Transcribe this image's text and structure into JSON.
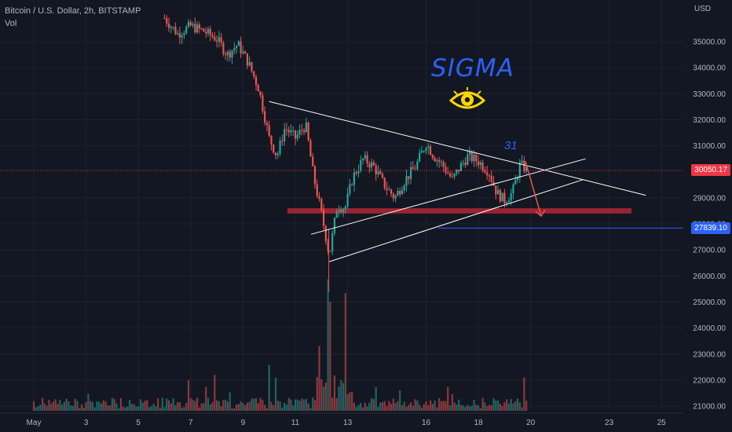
{
  "legend": {
    "symbol": "Bitcoin / U.S. Dollar, 2h, BITSTAMP",
    "volume_label": "Vol"
  },
  "price_axis": {
    "currency": "USD",
    "ticks": [
      "35000.00",
      "34000.00",
      "33000.00",
      "32000.00",
      "31000.00",
      "29000.00",
      "28000.00",
      "27000.00",
      "26000.00",
      "25000.00",
      "24000.00",
      "23000.00",
      "22000.00",
      "21000.00"
    ],
    "tick_values": [
      35000,
      34000,
      33000,
      32000,
      31000,
      29000,
      28000,
      27000,
      26000,
      25000,
      24000,
      23000,
      22000,
      21000
    ]
  },
  "time_axis": {
    "ticks": [
      "May",
      "3",
      "5",
      "7",
      "9",
      "11",
      "13",
      "16",
      "18",
      "20",
      "23",
      "25"
    ],
    "tick_days": [
      1,
      3,
      5,
      7,
      9,
      11,
      13,
      16,
      18,
      20,
      23,
      25
    ]
  },
  "price_tags": {
    "last_price": "30050.17",
    "target_price": "27839.10"
  },
  "colors": {
    "background": "#131722",
    "up": "#26a69a",
    "down": "#ef5350",
    "last_price_tag": "#f23645",
    "target_tag": "#2962ff",
    "support_zone": "#b22833",
    "trendlines": "#ffffff",
    "annotation": "#2962ff"
  },
  "annotations": {
    "brand": "SIGMA",
    "brand_icon": "eye-icon",
    "wave_label": "31"
  },
  "chart_data": {
    "type": "candlestick",
    "title": "Bitcoin / U.S. Dollar, 2h, BITSTAMP",
    "interval": "2h",
    "ylim": [
      21000,
      36000
    ],
    "xlim_days": [
      1,
      26
    ],
    "last_price": 30050.17,
    "target_price": 27839.1,
    "support_zone": [
      28400,
      28600
    ],
    "close_path": [
      {
        "day": 6.0,
        "price": 35900
      },
      {
        "day": 6.5,
        "price": 35300
      },
      {
        "day": 7.0,
        "price": 35600
      },
      {
        "day": 7.5,
        "price": 35400
      },
      {
        "day": 8.0,
        "price": 35100
      },
      {
        "day": 8.4,
        "price": 34500
      },
      {
        "day": 8.8,
        "price": 34900
      },
      {
        "day": 9.2,
        "price": 34200
      },
      {
        "day": 9.6,
        "price": 33200
      },
      {
        "day": 10.0,
        "price": 31300
      },
      {
        "day": 10.3,
        "price": 30600
      },
      {
        "day": 10.6,
        "price": 31700
      },
      {
        "day": 11.0,
        "price": 31300
      },
      {
        "day": 11.4,
        "price": 31800
      },
      {
        "day": 11.7,
        "price": 29800
      },
      {
        "day": 12.0,
        "price": 28400
      },
      {
        "day": 12.3,
        "price": 26800
      },
      {
        "day": 12.6,
        "price": 28700
      },
      {
        "day": 12.9,
        "price": 28600
      },
      {
        "day": 13.2,
        "price": 29800
      },
      {
        "day": 13.6,
        "price": 30500
      },
      {
        "day": 14.0,
        "price": 30200
      },
      {
        "day": 14.4,
        "price": 29500
      },
      {
        "day": 14.8,
        "price": 29000
      },
      {
        "day": 15.2,
        "price": 29700
      },
      {
        "day": 15.6,
        "price": 30200
      },
      {
        "day": 16.0,
        "price": 31100
      },
      {
        "day": 16.3,
        "price": 30600
      },
      {
        "day": 16.6,
        "price": 30300
      },
      {
        "day": 17.0,
        "price": 29700
      },
      {
        "day": 17.3,
        "price": 30200
      },
      {
        "day": 17.6,
        "price": 30600
      },
      {
        "day": 18.0,
        "price": 30400
      },
      {
        "day": 18.4,
        "price": 30000
      },
      {
        "day": 18.7,
        "price": 29200
      },
      {
        "day": 19.0,
        "price": 28900
      },
      {
        "day": 19.3,
        "price": 29200
      },
      {
        "day": 19.6,
        "price": 30300
      },
      {
        "day": 19.85,
        "price": 30050
      }
    ],
    "volume_bars": [
      {
        "day": 12.3,
        "volume_rel": 1.0
      },
      {
        "day": 12.9,
        "volume_rel": 0.95
      },
      {
        "day": 11.9,
        "volume_rel": 0.35
      },
      {
        "day": 10.0,
        "volume_rel": 0.45
      },
      {
        "day": 6.9,
        "volume_rel": 0.3
      },
      {
        "day": 15.0,
        "volume_rel": 0.2
      }
    ],
    "trendlines": [
      {
        "name": "descending resistance",
        "from": {
          "day": 10.0,
          "price": 32700
        },
        "to": {
          "day": 24.4,
          "price": 29100
        }
      },
      {
        "name": "wedge lower",
        "from": {
          "day": 11.6,
          "price": 27600
        },
        "to": {
          "day": 22.1,
          "price": 30500
        }
      },
      {
        "name": "ascending support",
        "from": {
          "day": 12.3,
          "price": 26550
        },
        "to": {
          "day": 22.0,
          "price": 29700
        }
      }
    ],
    "projection": {
      "from": {
        "day": 19.8,
        "price": 30400
      },
      "to": {
        "day": 20.4,
        "price": 28300
      }
    },
    "grid": true
  }
}
